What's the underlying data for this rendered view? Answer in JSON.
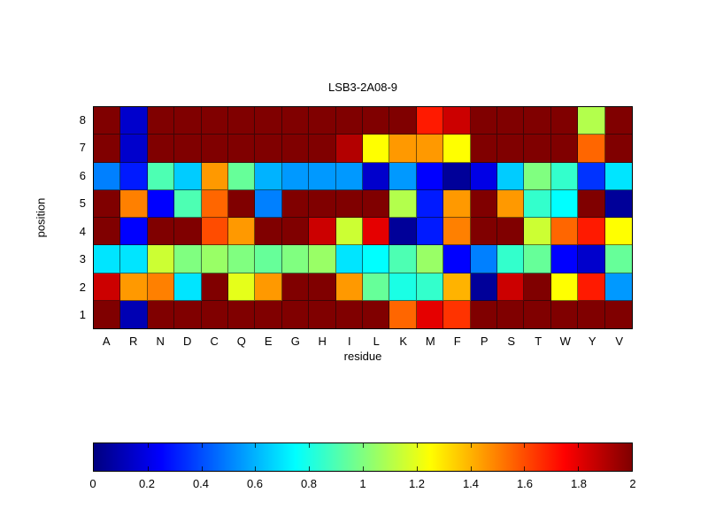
{
  "chart_data": {
    "type": "heatmap",
    "title": "LSB3-2A08-9",
    "xlabel": "residue",
    "ylabel": "position",
    "x_categories": [
      "A",
      "R",
      "N",
      "D",
      "C",
      "Q",
      "E",
      "G",
      "H",
      "I",
      "L",
      "K",
      "M",
      "F",
      "P",
      "S",
      "T",
      "W",
      "Y",
      "V"
    ],
    "y_categories": [
      "8",
      "7",
      "6",
      "5",
      "4",
      "3",
      "2",
      "1"
    ],
    "values": [
      [
        2,
        0.15,
        2,
        2,
        2,
        2,
        2,
        2,
        2,
        2,
        2,
        2,
        1.7,
        1.85,
        2,
        2,
        2,
        2,
        1.1,
        2
      ],
      [
        2,
        0.15,
        2,
        2,
        2,
        2,
        2,
        2,
        2,
        1.9,
        1.25,
        1.45,
        1.45,
        1.25,
        2,
        2,
        2,
        2,
        1.55,
        2
      ],
      [
        0.5,
        0.3,
        0.9,
        0.65,
        1.45,
        0.95,
        0.6,
        0.55,
        0.55,
        0.55,
        0.15,
        0.55,
        0.25,
        0.05,
        0.2,
        0.65,
        1.0,
        0.85,
        0.35,
        0.7
      ],
      [
        2,
        1.5,
        0.25,
        0.9,
        1.55,
        2,
        0.5,
        2,
        2,
        2,
        2,
        1.1,
        0.3,
        1.45,
        2,
        1.45,
        0.85,
        0.75,
        2,
        0.05
      ],
      [
        2,
        0.25,
        2,
        2,
        1.6,
        1.45,
        2,
        2,
        1.85,
        1.15,
        1.8,
        0.05,
        0.3,
        1.5,
        2,
        2,
        1.15,
        1.55,
        1.7,
        1.25
      ],
      [
        0.7,
        0.7,
        1.15,
        1.0,
        1.05,
        1.0,
        0.95,
        1.0,
        1.05,
        0.7,
        0.75,
        0.9,
        1.05,
        0.25,
        0.5,
        0.85,
        0.95,
        0.25,
        0.15,
        0.95
      ],
      [
        1.85,
        1.45,
        1.5,
        0.7,
        2,
        1.2,
        1.45,
        2,
        2,
        1.45,
        0.95,
        0.8,
        0.85,
        1.4,
        0.05,
        1.85,
        2,
        1.25,
        1.7,
        0.55
      ],
      [
        2,
        0.1,
        2,
        2,
        2,
        2,
        2,
        2,
        2,
        2,
        2,
        1.55,
        1.8,
        1.65,
        2,
        2,
        2,
        2,
        2,
        2
      ]
    ],
    "value_range": [
      0,
      2
    ],
    "colormap": "jet",
    "grid": true,
    "legend_position": "bottom-colorbar",
    "colorbar_ticks": [
      "0",
      "0.2",
      "0.4",
      "0.6",
      "0.8",
      "1",
      "1.2",
      "1.4",
      "1.6",
      "1.8",
      "2"
    ]
  }
}
